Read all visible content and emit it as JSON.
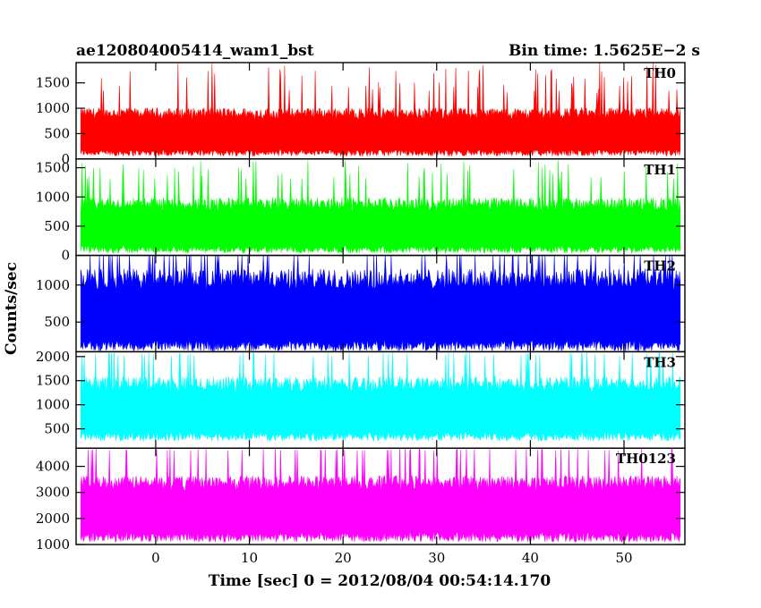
{
  "chart_data": {
    "type": "line",
    "title": "ae120804005414_wam1_bst",
    "subtitle": "Bin time: 1.5625E−2 s",
    "xlabel": "Time [sec] 0 = 2012/08/04 00:54:14.170",
    "ylabel": "Counts/sec",
    "xlim": [
      -8.5,
      56.5
    ],
    "x_range_data": [
      -8,
      56
    ],
    "bin_time_s": 0.015625,
    "x_ticks": [
      0,
      10,
      20,
      30,
      40,
      50
    ],
    "grid": false,
    "panels": [
      {
        "name": "TH0",
        "color": "#ff0000",
        "ylim": [
          0,
          1900
        ],
        "y_ticks": [
          0,
          500,
          1000,
          1500
        ],
        "baseline": 580,
        "spread": 330,
        "typical_peak": 1300,
        "min": 60
      },
      {
        "name": "TH1",
        "color": "#00ff00",
        "ylim": [
          0,
          1650
        ],
        "y_ticks": [
          0,
          500,
          1000,
          1500
        ],
        "baseline": 560,
        "spread": 330,
        "typical_peak": 1300,
        "min": 40
      },
      {
        "name": "TH2",
        "color": "#0000ff",
        "ylim": [
          100,
          1400
        ],
        "y_ticks": [
          500,
          1000
        ],
        "baseline": 700,
        "spread": 400,
        "typical_peak": 1400,
        "min": 110
      },
      {
        "name": "TH3",
        "color": "#00ffff",
        "ylim": [
          100,
          2100
        ],
        "y_ticks": [
          500,
          1000,
          1500,
          2000
        ],
        "baseline": 1000,
        "spread": 450,
        "typical_peak": 2000,
        "min": 250
      },
      {
        "name": "TH0123",
        "color": "#ff00ff",
        "ylim": [
          1000,
          4700
        ],
        "y_ticks": [
          1000,
          2000,
          3000,
          4000
        ],
        "baseline": 2600,
        "spread": 800,
        "typical_peak": 4600,
        "min": 1100
      }
    ]
  }
}
